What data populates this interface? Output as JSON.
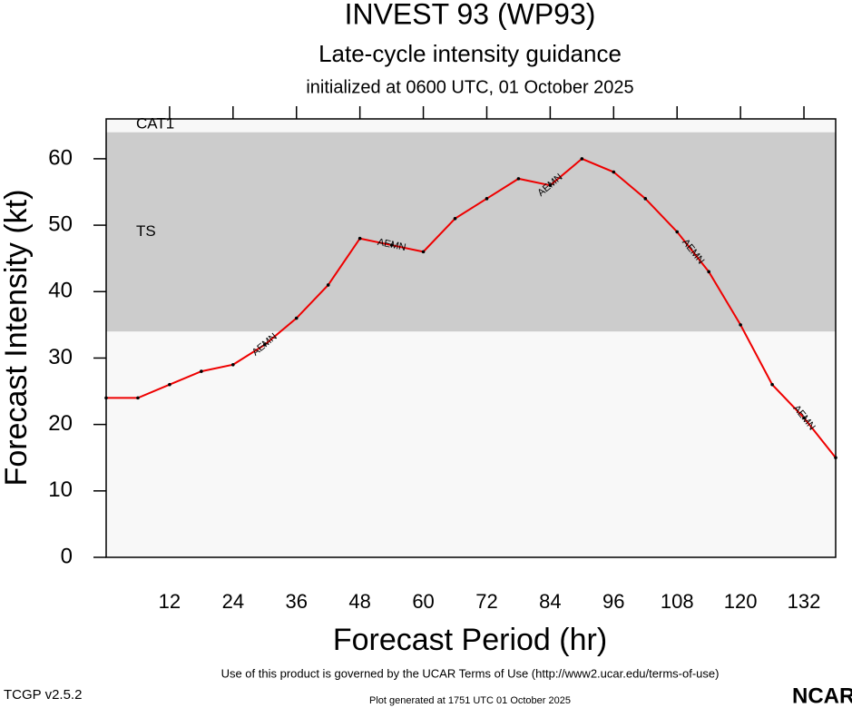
{
  "chart_data": {
    "type": "line",
    "title": "INVEST 93 (WP93)",
    "subtitle": "Late-cycle intensity guidance",
    "initialized": "initialized at 0600 UTC, 01 October 2025",
    "x_label": "Forecast Period (hr)",
    "y_label": "Forecast Intensity (kt)",
    "x": [
      0,
      6,
      12,
      18,
      24,
      30,
      36,
      42,
      48,
      54,
      60,
      66,
      72,
      78,
      84,
      90,
      96,
      102,
      108,
      114,
      120,
      126,
      132,
      138
    ],
    "series": [
      {
        "name": "AEMN",
        "color": "#ee0000",
        "values": [
          24,
          24,
          26,
          28,
          29,
          32,
          36,
          41,
          48,
          47,
          46,
          51,
          54,
          57,
          56,
          60,
          58,
          54,
          49,
          43,
          35,
          26,
          21,
          15
        ]
      }
    ],
    "bands": [
      {
        "label": "TS",
        "from": 34,
        "to": 64,
        "color": "#cccccc"
      },
      {
        "label": "CAT1",
        "from": 64,
        "color": "#f8f8f8"
      }
    ],
    "below_color": "#f8f8f8",
    "xlim": [
      0,
      138
    ],
    "ylim": [
      0,
      66
    ],
    "xticks": [
      12,
      24,
      36,
      48,
      60,
      72,
      84,
      96,
      108,
      120,
      132
    ],
    "yticks": [
      0,
      10,
      20,
      30,
      40,
      50,
      60
    ],
    "terms": "Use of this product is governed by the UCAR Terms of Use (http://www2.ucar.edu/terms-of-use)",
    "version": "TCGP v2.5.2",
    "generated": "Plot generated at 1751 UTC   01 October 2025",
    "logo": "NCAR"
  }
}
